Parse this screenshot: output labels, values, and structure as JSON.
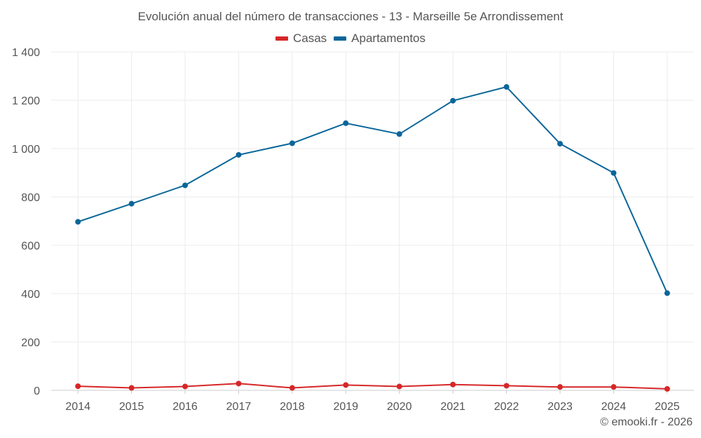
{
  "chart_data": {
    "type": "line",
    "title": "Evolución anual del número de transacciones - 13 - Marseille 5e Arrondissement",
    "xlabel": "",
    "ylabel": "",
    "categories": [
      "2014",
      "2015",
      "2016",
      "2017",
      "2018",
      "2019",
      "2020",
      "2021",
      "2022",
      "2023",
      "2024",
      "2025"
    ],
    "ylim": [
      0,
      1400
    ],
    "yticks": [
      0,
      200,
      400,
      600,
      800,
      1000,
      1200,
      1400
    ],
    "ytick_labels": [
      "0",
      "200",
      "400",
      "600",
      "800",
      "1 000",
      "1 200",
      "1 400"
    ],
    "grid": true,
    "legend_position": "top-center",
    "series": [
      {
        "name": "Casas",
        "color": "#d62728",
        "values": [
          17,
          10,
          16,
          28,
          10,
          22,
          16,
          24,
          19,
          14,
          14,
          6
        ]
      },
      {
        "name": "Apartamentos",
        "color": "#0a6699",
        "values": [
          697,
          772,
          848,
          974,
          1022,
          1105,
          1060,
          1198,
          1255,
          1020,
          899,
          402
        ]
      }
    ]
  },
  "credit": "© emooki.fr - 2026"
}
